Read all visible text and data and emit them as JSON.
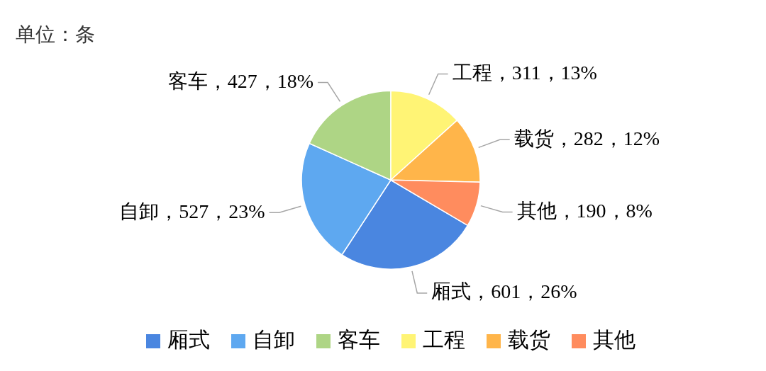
{
  "chart_data": {
    "type": "pie",
    "title": "单位：条",
    "categories": [
      "厢式",
      "自卸",
      "客车",
      "工程",
      "载货",
      "其他"
    ],
    "values": [
      601,
      527,
      427,
      311,
      282,
      190
    ],
    "colors": [
      "#4a86e0",
      "#5ea8f0",
      "#aed585",
      "#fff475",
      "#ffb54a",
      "#ff8c5e"
    ],
    "value_labels": [
      "厢式，601，26%",
      "自卸，527，23%",
      "客车，427，18%",
      "工程，311，13%",
      "载货，282，12%",
      "其他，190，8%"
    ],
    "legend": "bottom"
  }
}
